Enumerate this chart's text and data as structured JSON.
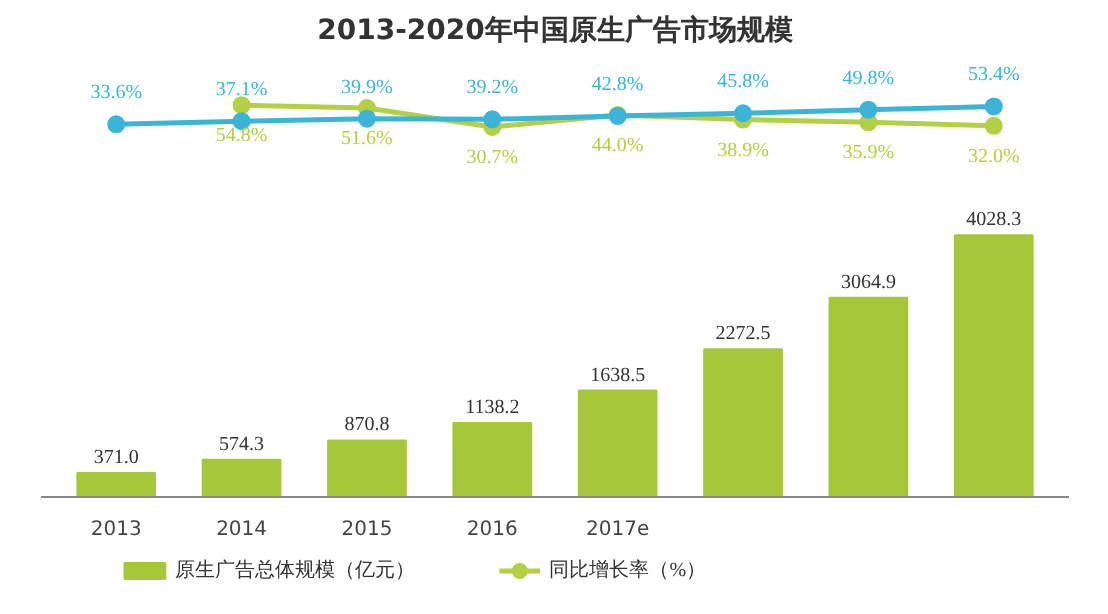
{
  "chart_data": [
    {
      "type": "line",
      "title": "2013-2020年中国原生广告市场规模",
      "tick_labels": false,
      "marker": "circle",
      "line_style": "solid",
      "series": [
        {
          "name": "同比增长率（%）",
          "color": "#b3cf45",
          "values": [
            null,
            54.8,
            51.6,
            30.7,
            44.0,
            38.9,
            35.9,
            32.0
          ],
          "value_labels": [
            null,
            "54.8%",
            "51.6%",
            "30.7%",
            "44.0%",
            "38.9%",
            "35.9%",
            "32.0%"
          ]
        },
        {
          "color": "#3cb4d8",
          "values": [
            33.6,
            37.1,
            39.9,
            39.2,
            42.8,
            45.8,
            49.8,
            53.4
          ],
          "value_labels": [
            "33.6%",
            "37.1%",
            "39.9%",
            "39.2%",
            "42.8%",
            "45.8%",
            "49.8%",
            "53.4%"
          ]
        }
      ]
    },
    {
      "type": "bar",
      "categories": [
        "2013",
        "2014",
        "2015",
        "2016",
        "2017e",
        null,
        null,
        null
      ],
      "tick_labels": "x",
      "legend": "bottom",
      "series": [
        {
          "name": "原生广告总体规模（亿元）",
          "color": "#a5c739",
          "values": [
            371.0,
            574.3,
            870.8,
            1138.2,
            1638.5,
            2272.5,
            3064.9,
            4028.3
          ],
          "value_labels": [
            "371.0",
            "574.3",
            "870.8",
            "1138.2",
            "1638.5",
            "2272.5",
            "3064.9",
            "4028.3"
          ]
        }
      ]
    }
  ]
}
